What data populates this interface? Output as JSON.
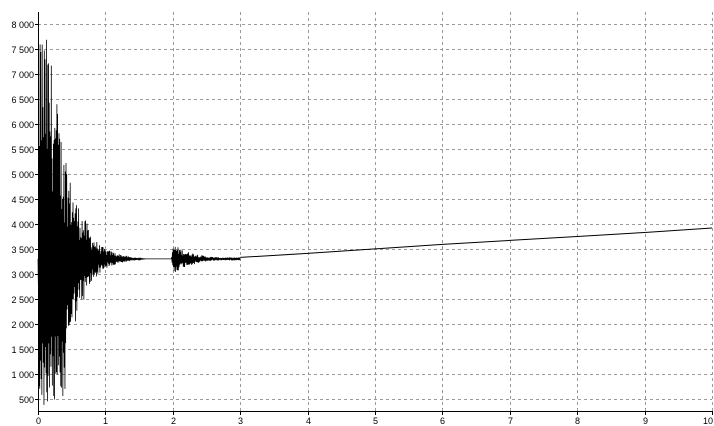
{
  "chart_data": {
    "type": "line",
    "title": "",
    "xlabel": "",
    "ylabel": "",
    "xlim": [
      0,
      10
    ],
    "ylim": [
      250,
      8250
    ],
    "x_ticks": [
      0,
      1,
      2,
      3,
      4,
      5,
      6,
      7,
      8,
      9,
      10
    ],
    "x_tick_labels": [
      "0",
      "1",
      "2",
      "3",
      "4",
      "5",
      "6",
      "7",
      "8",
      "9",
      "10"
    ],
    "y_ticks": [
      500,
      1000,
      1500,
      2000,
      2500,
      3000,
      3500,
      4000,
      4500,
      5000,
      5500,
      6000,
      6500,
      7000,
      7500,
      8000
    ],
    "y_tick_labels": [
      "500",
      "1 000",
      "1 500",
      "2 000",
      "2 500",
      "3 000",
      "3 500",
      "4 000",
      "4 500",
      "5 000",
      "5 500",
      "6 000",
      "6 500",
      "7 000",
      "7 500",
      "8 000"
    ],
    "grid": true,
    "legend": "none",
    "line_color": "#000000",
    "grid_color": "#9a9a9a",
    "series": [
      {
        "x": [
          0.0,
          0.05,
          0.1,
          0.15,
          0.2,
          0.25,
          0.3,
          0.35,
          0.4,
          0.5,
          0.6,
          0.7,
          0.8,
          0.9,
          1.0,
          1.2,
          1.4,
          1.6,
          1.8,
          1.98,
          2.0,
          2.05,
          2.1,
          2.2,
          2.3,
          2.4,
          2.5,
          2.6,
          2.75,
          3.0,
          4.0,
          5.0,
          6.0,
          7.0,
          8.0,
          9.0,
          10.0
        ],
        "y": [
          3300,
          8200,
          300,
          7900,
          800,
          7400,
          900,
          6500,
          1200,
          5200,
          1700,
          4500,
          2200,
          3900,
          3000,
          3500,
          3250,
          3300,
          3230,
          3250,
          3600,
          2950,
          3500,
          3100,
          3400,
          3180,
          3350,
          3270,
          3320,
          3330,
          3410,
          3500,
          3590,
          3670,
          3750,
          3830,
          3920
        ]
      }
    ],
    "envelope": [
      [
        0.0,
        0
      ],
      [
        0.02,
        8200
      ],
      [
        0.08,
        7900
      ],
      [
        0.15,
        7700
      ],
      [
        0.2,
        7300
      ],
      [
        0.3,
        6300
      ],
      [
        0.4,
        5300
      ],
      [
        0.5,
        4800
      ],
      [
        0.6,
        4400
      ],
      [
        0.7,
        4100
      ],
      [
        0.8,
        3800
      ],
      [
        0.9,
        3600
      ],
      [
        1.0,
        3500
      ],
      [
        1.2,
        3400
      ],
      [
        1.4,
        3330
      ],
      [
        1.6,
        3300
      ],
      [
        1.8,
        3280
      ],
      [
        1.98,
        3280
      ],
      [
        2.0,
        3600
      ],
      [
        2.1,
        3520
      ],
      [
        2.2,
        3450
      ],
      [
        2.35,
        3400
      ],
      [
        2.5,
        3350
      ],
      [
        2.7,
        3330
      ],
      [
        2.9,
        3330
      ],
      [
        3.0,
        3330
      ]
    ]
  }
}
